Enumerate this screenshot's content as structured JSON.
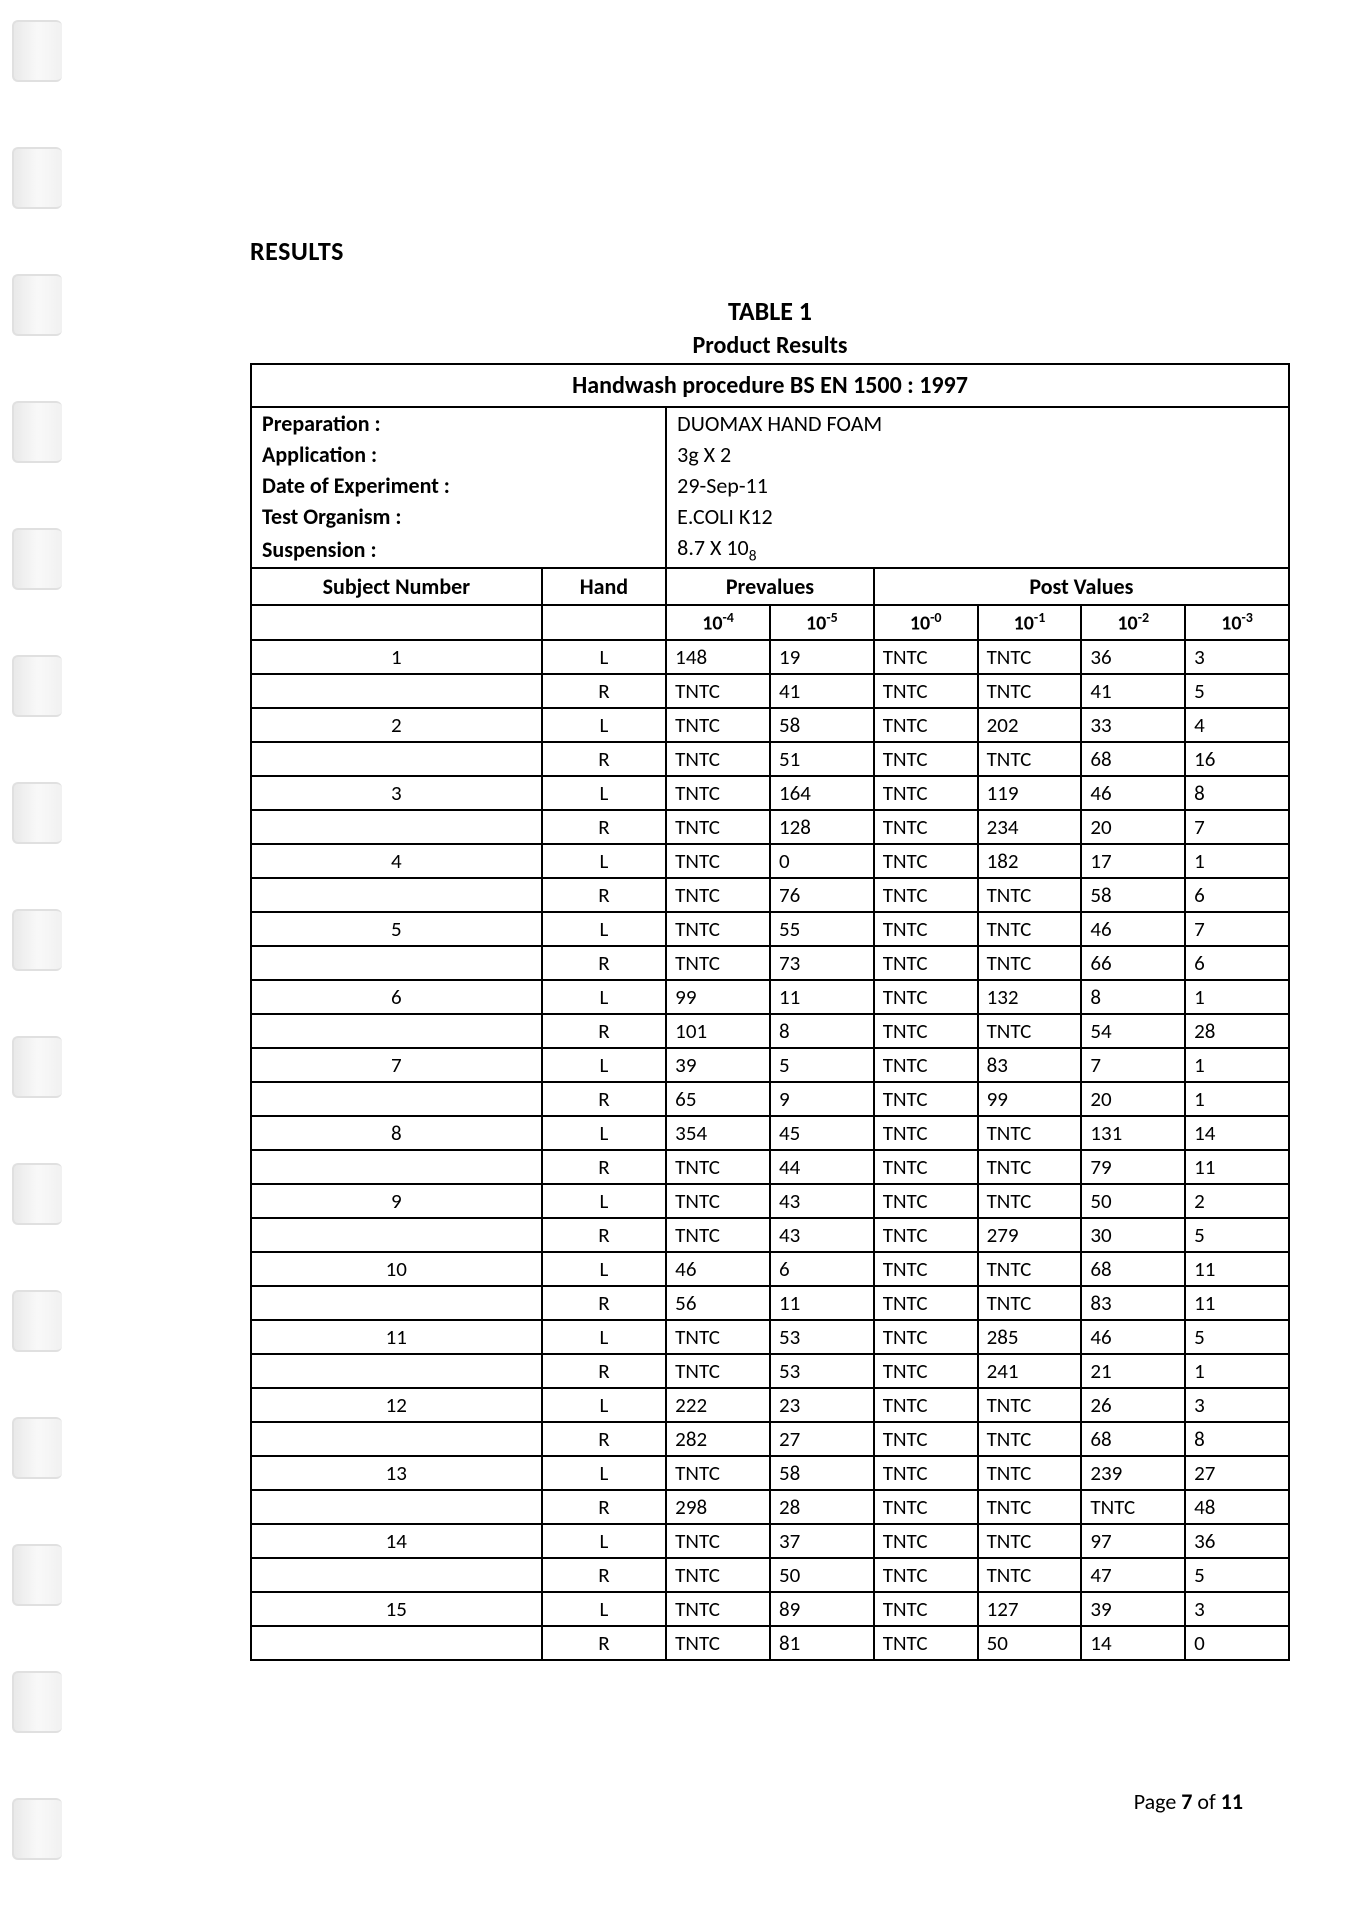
{
  "section_title": "RESULTS",
  "table_title": "TABLE 1",
  "table_subtitle": "Product Results",
  "procedure": "Handwash procedure BS EN 1500 : 1997",
  "meta": {
    "preparation_label": "Preparation :",
    "preparation_value": "DUOMAX HAND FOAM",
    "application_label": "Application :",
    "application_value": "3g X 2",
    "date_label": "Date of Experiment :",
    "date_value": "29-Sep-11",
    "organism_label": "Test Organism :",
    "organism_value": "E.COLI K12",
    "suspension_label": "Suspension :",
    "suspension_value_html": "8.7 X 10<sub>8</sub>"
  },
  "headers": {
    "subject_number": "Subject Number",
    "hand": "Hand",
    "prevalues": "Prevalues",
    "post_values": "Post Values",
    "pre_c1_html": "10<sup>-4</sup>",
    "pre_c2_html": "10<sup>-5</sup>",
    "post_c1_html": "10<sup>-0</sup>",
    "post_c2_html": "10<sup>-1</sup>",
    "post_c3_html": "10<sup>-2</sup>",
    "post_c4_html": "10<sup>-3</sup>"
  },
  "rows": [
    {
      "subj": "1",
      "hand": "L",
      "p1": "148",
      "p2": "19",
      "q1": "TNTC",
      "q2": "TNTC",
      "q3": "36",
      "q4": "3"
    },
    {
      "subj": "",
      "hand": "R",
      "p1": "TNTC",
      "p2": "41",
      "q1": "TNTC",
      "q2": "TNTC",
      "q3": "41",
      "q4": "5"
    },
    {
      "subj": "2",
      "hand": "L",
      "p1": "TNTC",
      "p2": "58",
      "q1": "TNTC",
      "q2": "202",
      "q3": "33",
      "q4": "4"
    },
    {
      "subj": "",
      "hand": "R",
      "p1": "TNTC",
      "p2": "51",
      "q1": "TNTC",
      "q2": "TNTC",
      "q3": "68",
      "q4": "16"
    },
    {
      "subj": "3",
      "hand": "L",
      "p1": "TNTC",
      "p2": "164",
      "q1": "TNTC",
      "q2": "119",
      "q3": "46",
      "q4": "8"
    },
    {
      "subj": "",
      "hand": "R",
      "p1": "TNTC",
      "p2": "128",
      "q1": "TNTC",
      "q2": "234",
      "q3": "20",
      "q4": "7"
    },
    {
      "subj": "4",
      "hand": "L",
      "p1": "TNTC",
      "p2": "0",
      "q1": "TNTC",
      "q2": "182",
      "q3": "17",
      "q4": "1"
    },
    {
      "subj": "",
      "hand": "R",
      "p1": "TNTC",
      "p2": "76",
      "q1": "TNTC",
      "q2": "TNTC",
      "q3": "58",
      "q4": "6"
    },
    {
      "subj": "5",
      "hand": "L",
      "p1": "TNTC",
      "p2": "55",
      "q1": "TNTC",
      "q2": "TNTC",
      "q3": "46",
      "q4": "7"
    },
    {
      "subj": "",
      "hand": "R",
      "p1": "TNTC",
      "p2": "73",
      "q1": "TNTC",
      "q2": "TNTC",
      "q3": "66",
      "q4": "6"
    },
    {
      "subj": "6",
      "hand": "L",
      "p1": "99",
      "p2": "11",
      "q1": "TNTC",
      "q2": "132",
      "q3": "8",
      "q4": "1"
    },
    {
      "subj": "",
      "hand": "R",
      "p1": "101",
      "p2": "8",
      "q1": "TNTC",
      "q2": "TNTC",
      "q3": "54",
      "q4": "28"
    },
    {
      "subj": "7",
      "hand": "L",
      "p1": "39",
      "p2": "5",
      "q1": "TNTC",
      "q2": "83",
      "q3": "7",
      "q4": "1"
    },
    {
      "subj": "",
      "hand": "R",
      "p1": "65",
      "p2": "9",
      "q1": "TNTC",
      "q2": "99",
      "q3": "20",
      "q4": "1"
    },
    {
      "subj": "8",
      "hand": "L",
      "p1": "354",
      "p2": "45",
      "q1": "TNTC",
      "q2": "TNTC",
      "q3": "131",
      "q4": "14"
    },
    {
      "subj": "",
      "hand": "R",
      "p1": "TNTC",
      "p2": "44",
      "q1": "TNTC",
      "q2": "TNTC",
      "q3": "79",
      "q4": "11"
    },
    {
      "subj": "9",
      "hand": "L",
      "p1": "TNTC",
      "p2": "43",
      "q1": "TNTC",
      "q2": "TNTC",
      "q3": "50",
      "q4": "2"
    },
    {
      "subj": "",
      "hand": "R",
      "p1": "TNTC",
      "p2": "43",
      "q1": "TNTC",
      "q2": "279",
      "q3": "30",
      "q4": "5"
    },
    {
      "subj": "10",
      "hand": "L",
      "p1": "46",
      "p2": "6",
      "q1": "TNTC",
      "q2": "TNTC",
      "q3": "68",
      "q4": "11"
    },
    {
      "subj": "",
      "hand": "R",
      "p1": "56",
      "p2": "11",
      "q1": "TNTC",
      "q2": "TNTC",
      "q3": "83",
      "q4": "11"
    },
    {
      "subj": "11",
      "hand": "L",
      "p1": "TNTC",
      "p2": "53",
      "q1": "TNTC",
      "q2": "285",
      "q3": "46",
      "q4": "5"
    },
    {
      "subj": "",
      "hand": "R",
      "p1": "TNTC",
      "p2": "53",
      "q1": "TNTC",
      "q2": "241",
      "q3": "21",
      "q4": "1"
    },
    {
      "subj": "12",
      "hand": "L",
      "p1": "222",
      "p2": "23",
      "q1": "TNTC",
      "q2": "TNTC",
      "q3": "26",
      "q4": "3"
    },
    {
      "subj": "",
      "hand": "R",
      "p1": "282",
      "p2": "27",
      "q1": "TNTC",
      "q2": "TNTC",
      "q3": "68",
      "q4": "8"
    },
    {
      "subj": "13",
      "hand": "L",
      "p1": "TNTC",
      "p2": "58",
      "q1": "TNTC",
      "q2": "TNTC",
      "q3": "239",
      "q4": "27"
    },
    {
      "subj": "",
      "hand": "R",
      "p1": "298",
      "p2": "28",
      "q1": "TNTC",
      "q2": "TNTC",
      "q3": "TNTC",
      "q4": "48"
    },
    {
      "subj": "14",
      "hand": "L",
      "p1": "TNTC",
      "p2": "37",
      "q1": "TNTC",
      "q2": "TNTC",
      "q3": "97",
      "q4": "36"
    },
    {
      "subj": "",
      "hand": "R",
      "p1": "TNTC",
      "p2": "50",
      "q1": "TNTC",
      "q2": "TNTC",
      "q3": "47",
      "q4": "5"
    },
    {
      "subj": "15",
      "hand": "L",
      "p1": "TNTC",
      "p2": "89",
      "q1": "TNTC",
      "q2": "127",
      "q3": "39",
      "q4": "3"
    },
    {
      "subj": "",
      "hand": "R",
      "p1": "TNTC",
      "p2": "81",
      "q1": "TNTC",
      "q2": "50",
      "q3": "14",
      "q4": "0"
    }
  ],
  "page_number": {
    "prefix": "Page ",
    "current": "7",
    "of": " of ",
    "total": "11"
  }
}
